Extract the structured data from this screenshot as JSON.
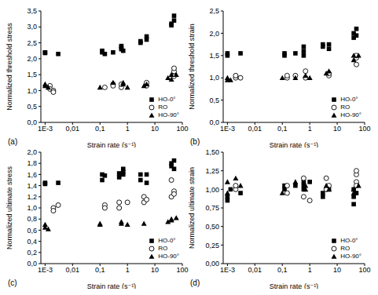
{
  "chart_data": [
    {
      "type": "scatter",
      "title": "(a)",
      "x_label": "Strain rate (s⁻¹)",
      "y_label": "Normalized threshold stress",
      "log": "x",
      "legend": "lower right",
      "xlim": [
        0.0007,
        100
      ],
      "xticks": [
        {
          "value": 0.001,
          "label": "1E-3"
        },
        {
          "value": 0.01,
          "label": "0,01"
        },
        {
          "value": 0.1,
          "label": "0,1"
        },
        1,
        10,
        100
      ],
      "ylim": [
        0,
        3.5
      ],
      "yticks": [
        {
          "value": 0,
          "label": "0,0"
        },
        {
          "value": 0.5,
          "label": "0,5"
        },
        {
          "value": 1,
          "label": "1,0"
        },
        {
          "value": 1.5,
          "label": "1,5"
        },
        {
          "value": 2,
          "label": "2,0"
        },
        {
          "value": 2.5,
          "label": "2,5"
        },
        {
          "value": 3,
          "label": "3,0"
        },
        {
          "value": 3.5,
          "label": "3,5"
        }
      ],
      "series": [
        {
          "name": "HO-0°",
          "color": "#000000",
          "marker": "square",
          "x": [
            0.001,
            0.001,
            0.003,
            0.12,
            0.12,
            0.15,
            0.3,
            0.6,
            0.6,
            0.6,
            0.7,
            3,
            3,
            5,
            5,
            40,
            40,
            50,
            50
          ],
          "values": [
            2.2,
            2.18,
            2.15,
            2.25,
            2.2,
            2.15,
            2.2,
            2.3,
            2.35,
            2.4,
            2.25,
            2.5,
            2.55,
            2.6,
            2.7,
            3.1,
            3.05,
            3.2,
            3.35
          ]
        },
        {
          "name": "RO",
          "color": "#000000",
          "marker": "open_circle",
          "x": [
            0.0015,
            0.0015,
            0.002,
            0.002,
            0.15,
            0.3,
            0.3,
            0.6,
            0.6,
            5,
            5,
            50,
            50,
            50,
            50
          ],
          "values": [
            1.15,
            1.05,
            1.0,
            0.95,
            1.1,
            1.2,
            1.15,
            1.1,
            1.2,
            1.15,
            1.25,
            1.5,
            1.6,
            1.7,
            1.45
          ]
        },
        {
          "name": "HO-90°",
          "color": "#000000",
          "marker": "triangle",
          "x": [
            0.001,
            0.001,
            0.0013,
            0.1,
            0.3,
            0.7,
            0.7,
            1,
            4,
            5,
            30,
            40,
            40,
            60
          ],
          "values": [
            1.2,
            1.15,
            1.1,
            1.1,
            1.25,
            1.2,
            1.25,
            1.1,
            1.15,
            1.2,
            1.4,
            1.35,
            1.5,
            1.5
          ]
        }
      ]
    },
    {
      "type": "scatter",
      "title": "(b)",
      "x_label": "Strain rate (s⁻¹)",
      "y_label": "Normalized threshold strain",
      "log": "x",
      "legend": "lower right",
      "xlim": [
        0.0007,
        100
      ],
      "xticks": [
        {
          "value": 0.001,
          "label": "1E-3"
        },
        {
          "value": 0.01,
          "label": "0,01"
        },
        {
          "value": 0.1,
          "label": "0,1"
        },
        1,
        10,
        100
      ],
      "ylim": [
        0,
        2.5
      ],
      "yticks": [
        {
          "value": 0,
          "label": "0,0"
        },
        {
          "value": 0.5,
          "label": "0,5"
        },
        {
          "value": 1,
          "label": "1,0"
        },
        {
          "value": 1.5,
          "label": "1,5"
        },
        {
          "value": 2,
          "label": "2,0"
        },
        {
          "value": 2.5,
          "label": "2,5"
        }
      ],
      "series": [
        {
          "name": "HO-0°",
          "color": "#000000",
          "marker": "square",
          "x": [
            0.001,
            0.001,
            0.003,
            0.12,
            0.12,
            0.3,
            0.6,
            0.6,
            0.6,
            3,
            3,
            5,
            5,
            40,
            40,
            50,
            50
          ],
          "values": [
            1.55,
            1.5,
            1.55,
            1.55,
            1.5,
            1.55,
            1.6,
            1.7,
            1.5,
            1.7,
            1.75,
            1.65,
            1.75,
            1.9,
            2.0,
            2.1,
            1.95
          ]
        },
        {
          "name": "RO",
          "color": "#000000",
          "marker": "open_circle",
          "x": [
            0.002,
            0.002,
            0.003,
            0.15,
            0.15,
            0.3,
            0.7,
            0.7,
            5,
            5,
            50,
            50,
            50
          ],
          "values": [
            1.0,
            1.05,
            1.0,
            1.0,
            1.05,
            1.05,
            1.0,
            1.15,
            1.05,
            1.1,
            1.3,
            1.45,
            1.5
          ]
        },
        {
          "name": "HO-90°",
          "color": "#000000",
          "marker": "triangle",
          "x": [
            0.001,
            0.001,
            0.0013,
            0.1,
            0.3,
            0.7,
            1,
            4,
            5,
            40,
            40,
            60
          ],
          "values": [
            0.95,
            1.0,
            0.95,
            1.0,
            1.0,
            1.05,
            1.0,
            1.1,
            1.15,
            1.4,
            1.5,
            1.5
          ]
        }
      ]
    },
    {
      "type": "scatter",
      "title": "(c)",
      "x_label": "Strain rate (s⁻¹)",
      "y_label": "Normalized ultimate stress",
      "log": "x",
      "legend": "lower right",
      "xlim": [
        0.0007,
        100
      ],
      "xticks": [
        {
          "value": 0.001,
          "label": "1E-3"
        },
        {
          "value": 0.01,
          "label": "0,01"
        },
        {
          "value": 0.1,
          "label": "0,1"
        },
        1,
        10,
        100
      ],
      "ylim": [
        0,
        2
      ],
      "yticks": [
        {
          "value": 0,
          "label": "0,0"
        },
        {
          "value": 0.2,
          "label": "0,2"
        },
        {
          "value": 0.4,
          "label": "0,4"
        },
        {
          "value": 0.6,
          "label": "0,6"
        },
        {
          "value": 0.8,
          "label": "0,8"
        },
        {
          "value": 1,
          "label": "1,0"
        },
        {
          "value": 1.2,
          "label": "1,2"
        },
        {
          "value": 1.4,
          "label": "1,4"
        },
        {
          "value": 1.6,
          "label": "1,6"
        },
        {
          "value": 1.8,
          "label": "1,8"
        },
        {
          "value": 2,
          "label": "2,0"
        }
      ],
      "series": [
        {
          "name": "HO-0°",
          "color": "#000000",
          "marker": "square",
          "x": [
            0.001,
            0.001,
            0.003,
            0.12,
            0.12,
            0.15,
            0.5,
            0.5,
            0.7,
            0.7,
            0.7,
            3,
            3,
            5,
            5,
            40,
            40,
            50,
            50
          ],
          "values": [
            1.45,
            1.43,
            1.45,
            1.6,
            1.5,
            1.58,
            1.62,
            1.55,
            1.65,
            1.7,
            1.6,
            1.6,
            1.5,
            1.45,
            1.6,
            1.75,
            1.8,
            1.85,
            1.7
          ]
        },
        {
          "name": "RO",
          "color": "#000000",
          "marker": "open_circle",
          "x": [
            0.002,
            0.002,
            0.003,
            0.15,
            0.15,
            0.5,
            0.5,
            1,
            4,
            4,
            5,
            40,
            40,
            50,
            50
          ],
          "values": [
            1.0,
            0.95,
            1.05,
            1.05,
            1.0,
            1.1,
            1.0,
            1.1,
            1.2,
            1.1,
            1.15,
            1.5,
            1.2,
            1.3,
            1.25
          ]
        },
        {
          "name": "HO-90°",
          "color": "#000000",
          "marker": "triangle",
          "x": [
            0.001,
            0.001,
            0.0013,
            0.1,
            0.1,
            0.6,
            0.6,
            1,
            4,
            30,
            40,
            40,
            60
          ],
          "values": [
            0.7,
            0.65,
            0.62,
            0.72,
            0.7,
            0.75,
            0.72,
            0.7,
            0.72,
            0.75,
            0.8,
            0.78,
            0.82
          ]
        }
      ]
    },
    {
      "type": "scatter",
      "title": "(d)",
      "x_label": "Strain rate (s⁻¹)",
      "y_label": "Normalized ultimate strain",
      "log": "x",
      "legend": "lower right",
      "xlim": [
        0.0007,
        100
      ],
      "xticks": [
        {
          "value": 0.001,
          "label": "1E-3"
        },
        {
          "value": 0.01,
          "label": "0,01"
        },
        {
          "value": 0.1,
          "label": "0,1"
        },
        1,
        10,
        100
      ],
      "ylim": [
        0,
        1.5
      ],
      "yticks": [
        {
          "value": 0,
          "label": "0,00"
        },
        {
          "value": 0.25,
          "label": "0,25"
        },
        {
          "value": 0.5,
          "label": "0,50"
        },
        {
          "value": 0.75,
          "label": "0,75"
        },
        {
          "value": 1,
          "label": "1,00"
        },
        {
          "value": 1.25,
          "label": "1,25"
        },
        {
          "value": 1.5,
          "label": "1,50"
        }
      ],
      "series": [
        {
          "name": "HO-0°",
          "color": "#000000",
          "marker": "square",
          "x": [
            0.001,
            0.001,
            0.0013,
            0.003,
            0.12,
            0.12,
            0.3,
            0.6,
            0.6,
            0.6,
            1,
            3,
            3,
            5,
            40,
            40,
            40,
            50
          ],
          "values": [
            0.85,
            0.9,
            1.0,
            0.95,
            1.0,
            1.05,
            1.05,
            1.1,
            1.05,
            1.0,
            1.1,
            0.95,
            0.9,
            1.0,
            0.8,
            1.0,
            0.9,
            0.95
          ]
        },
        {
          "name": "RO",
          "color": "#000000",
          "marker": "open_circle",
          "x": [
            0.002,
            0.002,
            0.15,
            0.15,
            0.6,
            0.6,
            1,
            4,
            4,
            5,
            50,
            50,
            50,
            50
          ],
          "values": [
            1.0,
            1.05,
            1.05,
            0.95,
            0.9,
            1.15,
            0.85,
            1.0,
            1.15,
            1.05,
            1.1,
            1.2,
            1.25,
            1.05
          ]
        },
        {
          "name": "HO-90°",
          "color": "#000000",
          "marker": "triangle",
          "x": [
            0.001,
            0.001,
            0.002,
            0.003,
            0.1,
            0.3,
            0.7,
            0.7,
            4,
            5,
            40,
            40,
            60
          ],
          "values": [
            1.1,
            0.95,
            1.15,
            1.05,
            0.95,
            1.1,
            1.05,
            1.0,
            1.05,
            1.0,
            1.0,
            0.95,
            1.05
          ]
        }
      ]
    }
  ]
}
